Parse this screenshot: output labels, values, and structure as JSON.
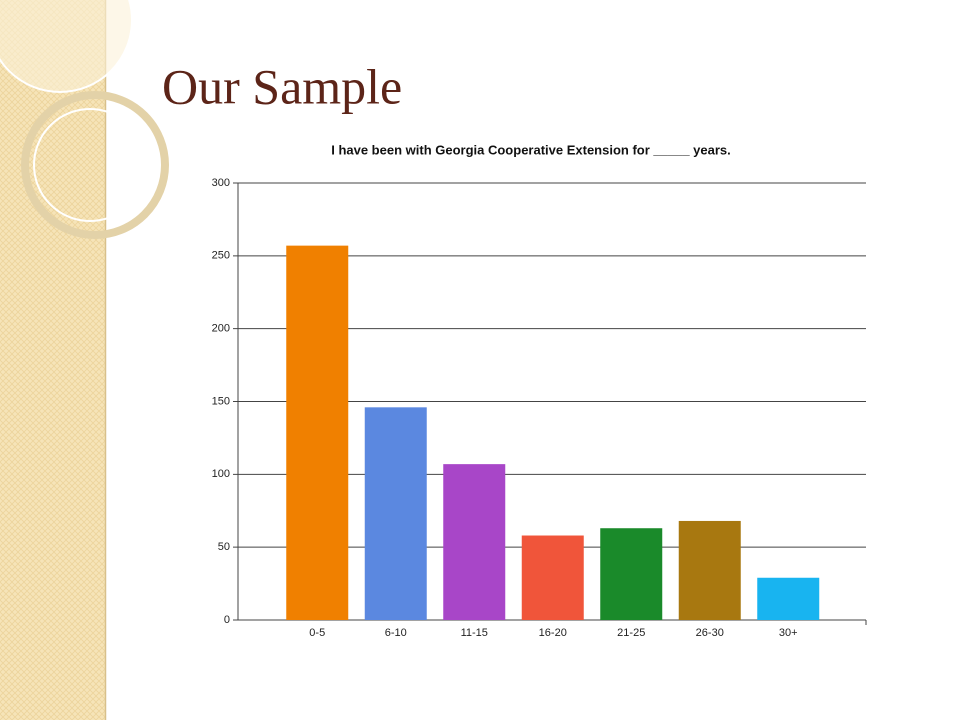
{
  "slide_title": "Our Sample",
  "chart_data": {
    "type": "bar",
    "title": "I have been with Georgia Cooperative Extension for _____ years.",
    "categories": [
      "0-5",
      "6-10",
      "11-15",
      "16-20",
      "21-25",
      "26-30",
      "30+"
    ],
    "values": [
      257,
      146,
      107,
      58,
      63,
      68,
      29
    ],
    "colors": [
      "#f08000",
      "#5b88e0",
      "#a846c8",
      "#f0553a",
      "#1a8a2a",
      "#a87810",
      "#18b4f0"
    ],
    "ylim": [
      0,
      300
    ],
    "yticks": [
      0,
      50,
      100,
      150,
      200,
      250,
      300
    ],
    "grid": true
  }
}
